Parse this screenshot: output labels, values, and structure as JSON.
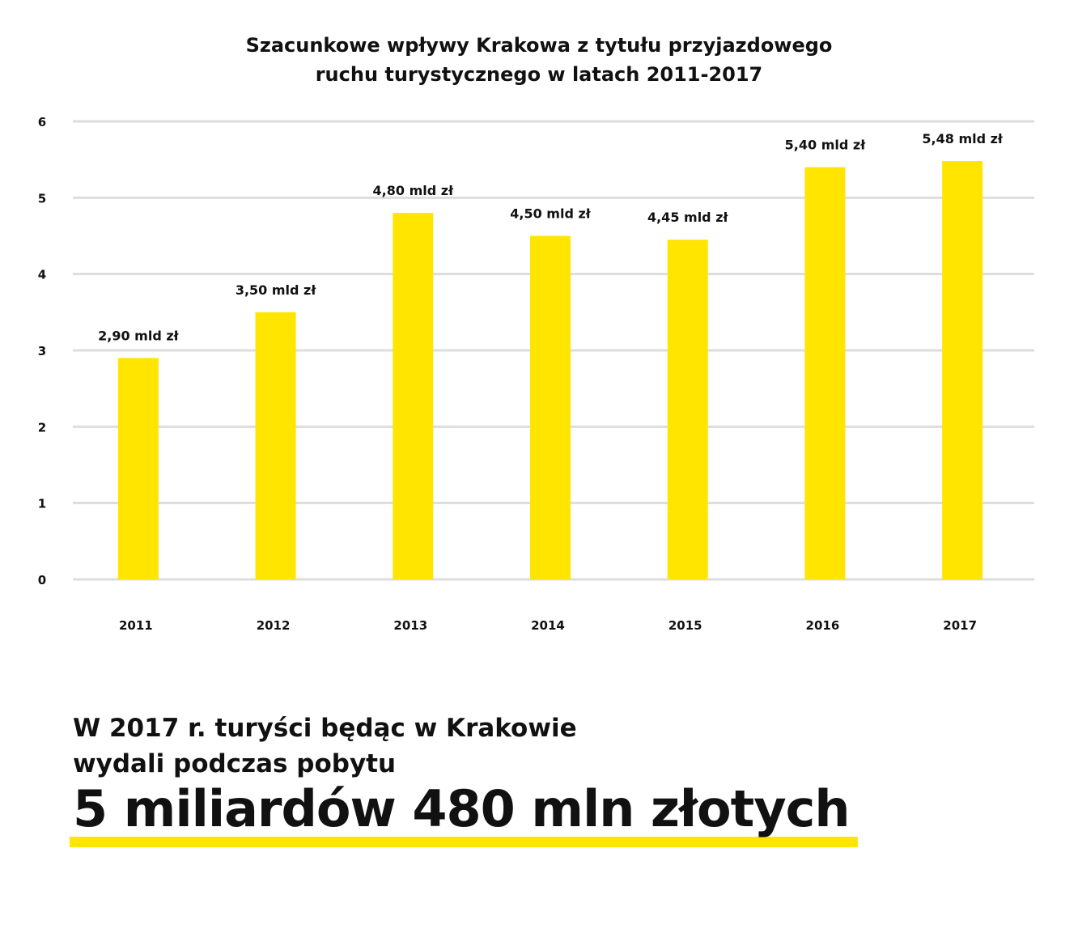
{
  "chart_data": {
    "type": "bar",
    "title_lines": [
      "Szacunkowe wpływy Krakowa z tytułu przyjazdowego",
      "ruchu turystycznego w latach 2011-2017"
    ],
    "categories": [
      "2011",
      "2012",
      "2013",
      "2014",
      "2015",
      "2016",
      "2017"
    ],
    "values": [
      2.9,
      3.5,
      4.8,
      4.5,
      4.45,
      5.4,
      5.48
    ],
    "data_labels": [
      "2,90 mld zł",
      "3,50 mld zł",
      "4,80 mld zł",
      "4,50 mld zł",
      "4,45 mld zł",
      "5,40 mld zł",
      "5,48 mld zł"
    ],
    "yticks": [
      "0",
      "1",
      "2",
      "3",
      "4",
      "5",
      "6"
    ],
    "ylim": [
      0,
      6
    ],
    "grid": true,
    "legend": "none",
    "bar_color": "#ffe500",
    "grid_color": "#dddddd"
  },
  "summary": {
    "line1": "W 2017 r. turyści będąc w Krakowie",
    "line2": "wydali podczas pobytu",
    "highlight": "5 miliardów 480 mln złotych",
    "underline_color": "#ffe500"
  }
}
